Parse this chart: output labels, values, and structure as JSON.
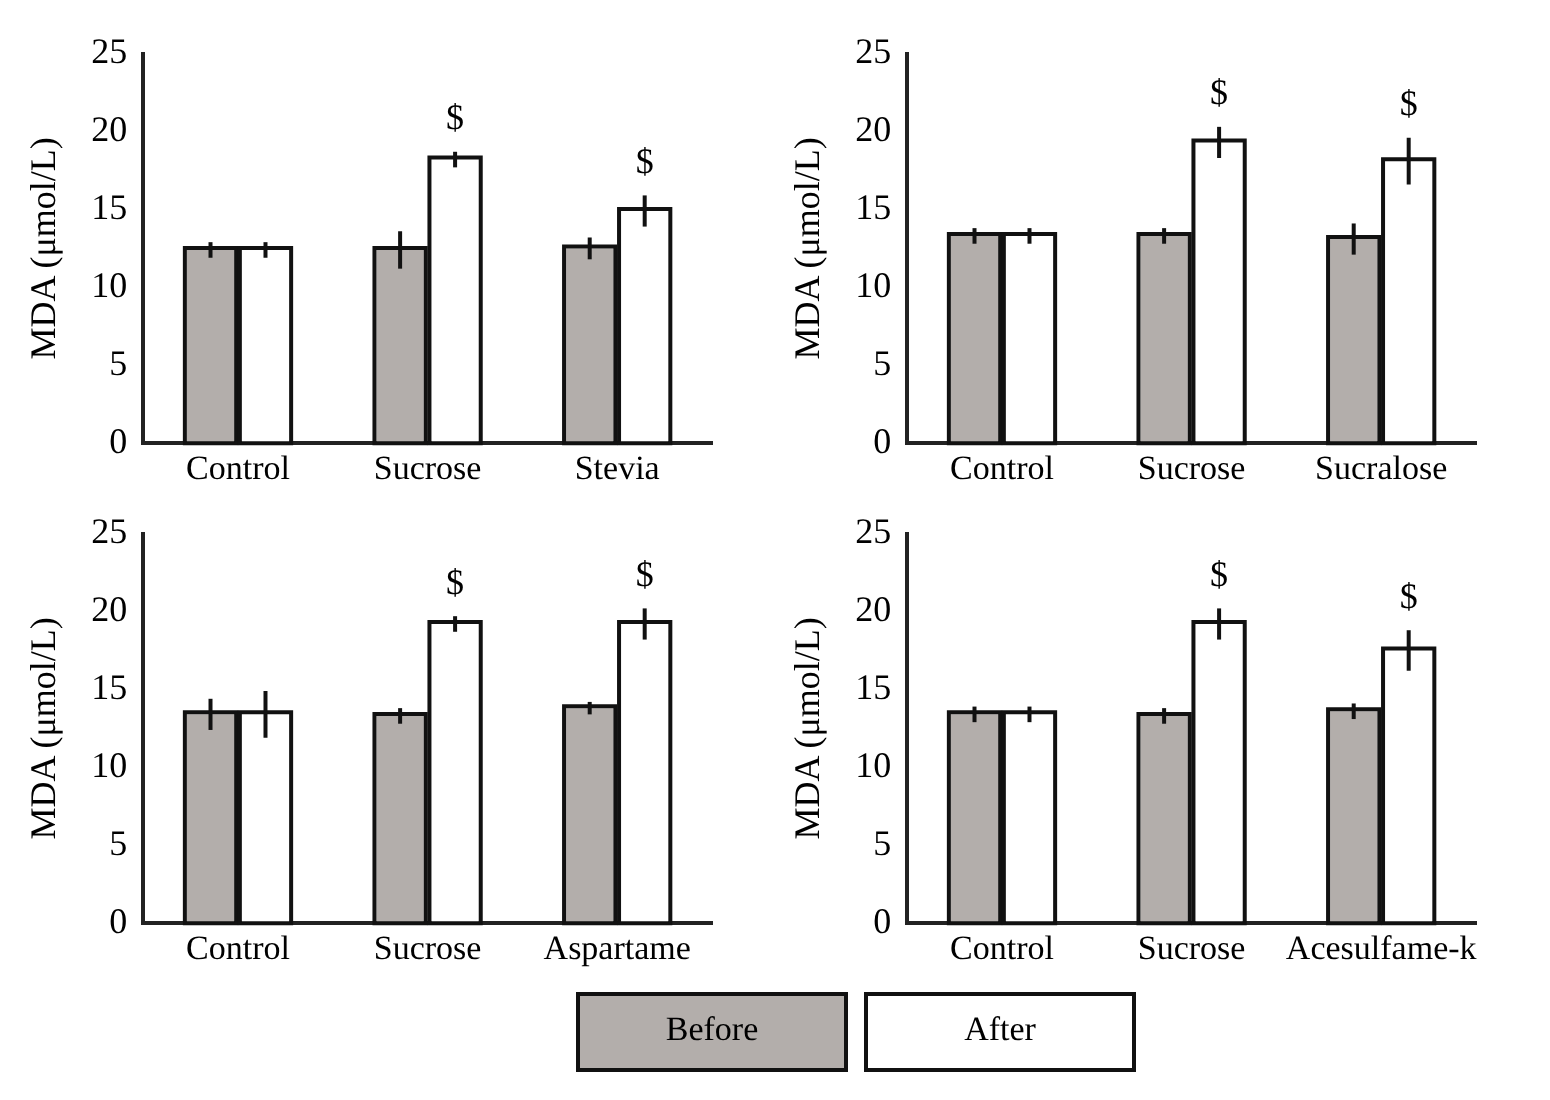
{
  "chart_data": [
    {
      "type": "bar",
      "categories": [
        "Control",
        "Sucrose",
        "Stevia"
      ],
      "ylabel": "MDA (μmol/L)",
      "ylim": [
        0,
        25
      ],
      "yticks": [
        0,
        5,
        10,
        15,
        20,
        25
      ],
      "grid": false,
      "series": [
        {
          "color": "#b3aeab",
          "values": [
            12.4,
            12.4,
            12.5
          ],
          "errors": [
            0.5,
            1.2,
            0.7
          ]
        },
        {
          "color": "#ffffff",
          "values": [
            12.4,
            18.2,
            14.9
          ],
          "errors": [
            0.5,
            0.5,
            1
          ]
        }
      ],
      "annotations": [
        {
          "text": "$",
          "x": "Sucrose",
          "y": 18.2
        },
        {
          "text": "$",
          "x": "Stevia",
          "y": 14.9
        }
      ]
    },
    {
      "type": "bar",
      "categories": [
        "Control",
        "Sucrose",
        "Sucralose"
      ],
      "ylabel": "MDA (μmol/L)",
      "ylim": [
        0,
        25
      ],
      "yticks": [
        0,
        5,
        10,
        15,
        20,
        25
      ],
      "grid": false,
      "series": [
        {
          "color": "#b3aeab",
          "values": [
            13.3,
            13.3,
            13.1
          ],
          "errors": [
            0.5,
            0.5,
            1
          ]
        },
        {
          "color": "#ffffff",
          "values": [
            13.3,
            19.3,
            18.1
          ],
          "errors": [
            0.5,
            1,
            1.5
          ]
        }
      ],
      "annotations": [
        {
          "text": "$",
          "x": "Sucrose",
          "y": 19.3
        },
        {
          "text": "$",
          "x": "Sucralose",
          "y": 18.1
        }
      ]
    },
    {
      "type": "bar",
      "categories": [
        "Control",
        "Sucrose",
        "Aspartame"
      ],
      "ylabel": "MDA (μmol/L)",
      "ylim": [
        0,
        25
      ],
      "yticks": [
        0,
        5,
        10,
        15,
        20,
        25
      ],
      "grid": false,
      "series": [
        {
          "color": "#b3aeab",
          "values": [
            13.4,
            13.3,
            13.8
          ],
          "errors": [
            1,
            0.5,
            0.4
          ]
        },
        {
          "color": "#ffffff",
          "values": [
            13.4,
            19.2,
            19.2
          ],
          "errors": [
            1.5,
            0.5,
            1
          ]
        }
      ],
      "annotations": [
        {
          "text": "$",
          "x": "Sucrose",
          "y": 19.2
        },
        {
          "text": "$",
          "x": "Aspartame",
          "y": 19.2
        }
      ]
    },
    {
      "type": "bar",
      "categories": [
        "Control",
        "Sucrose",
        "Acesulfame-k"
      ],
      "ylabel": "MDA (μmol/L)",
      "ylim": [
        0,
        25
      ],
      "yticks": [
        0,
        5,
        10,
        15,
        20,
        25
      ],
      "grid": false,
      "legend": "bottom",
      "series": [
        {
          "name": "Before",
          "color": "#b3aeab",
          "values": [
            13.4,
            13.3,
            13.6
          ],
          "errors": [
            0.5,
            0.5,
            0.5
          ]
        },
        {
          "name": "After",
          "color": "#ffffff",
          "values": [
            13.4,
            19.2,
            17.5
          ],
          "errors": [
            0.5,
            1,
            1.3
          ]
        }
      ],
      "annotations": [
        {
          "text": "$",
          "x": "Sucrose",
          "y": 19.2
        },
        {
          "text": "$",
          "x": "Acesulfame-k",
          "y": 17.5
        }
      ]
    }
  ]
}
